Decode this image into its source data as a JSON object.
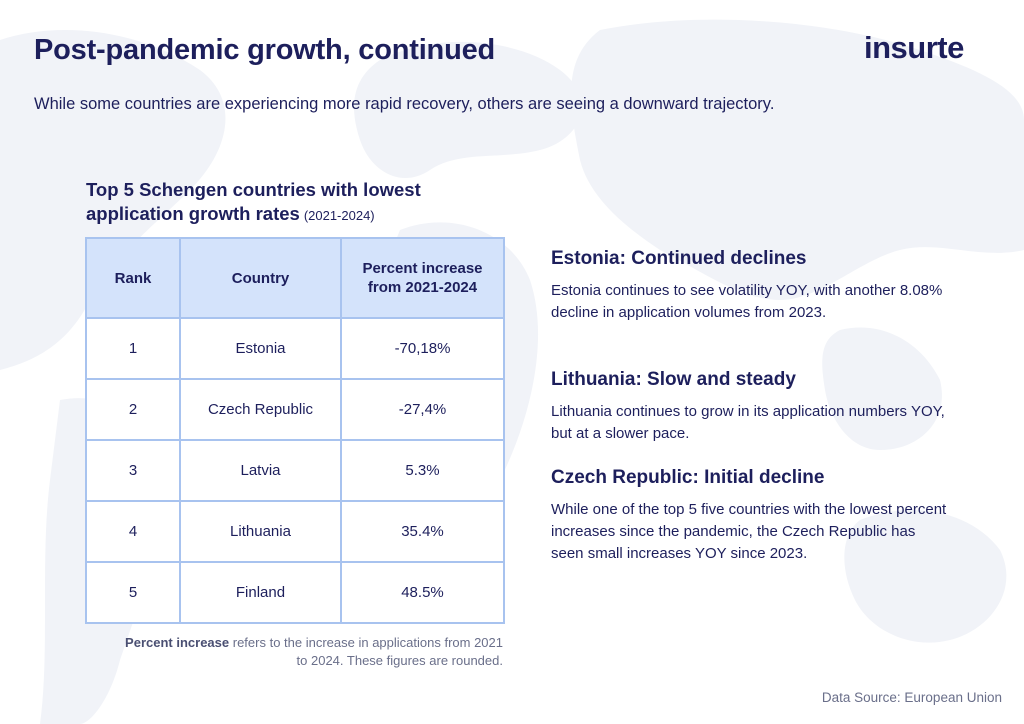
{
  "header": {
    "title": "Post-pandemic growth, continued",
    "brand": "insurte",
    "subtitle": "While some countries are experiencing more rapid recovery, others are seeing a downward trajectory."
  },
  "table": {
    "title": "Top 5 Schengen countries with lowest application growth rates",
    "period": "(2021-2024)",
    "columns": [
      "Rank",
      "Country",
      "Percent increase from 2021-2024"
    ],
    "rows": [
      {
        "rank": "1",
        "country": "Estonia",
        "change": "-70,18%"
      },
      {
        "rank": "2",
        "country": "Czech Republic",
        "change": "-27,4%"
      },
      {
        "rank": "3",
        "country": "Latvia",
        "change": "5.3%"
      },
      {
        "rank": "4",
        "country": "Lithuania",
        "change": "35.4%"
      },
      {
        "rank": "5",
        "country": "Finland",
        "change": "48.5%"
      }
    ],
    "footnote_term": "Percent increase",
    "footnote_text": " refers to the increase in applications from 2021 to 2024. These figures are rounded."
  },
  "insights": [
    {
      "heading": "Estonia: Continued declines",
      "body": "Estonia continues to see volatility YOY, with another 8.08% decline in application volumes from 2023."
    },
    {
      "heading": "Lithuania: Slow and steady",
      "body": "Lithuania continues to grow in its application numbers YOY, but at a slower pace."
    },
    {
      "heading": "Czech Republic: Initial decline",
      "body": "While one of the top 5 five countries with the lowest percent increases since the pandemic, the Czech Republic has seen small increases YOY since 2023."
    }
  ],
  "footer": {
    "source": "Data Source: European Union"
  },
  "colors": {
    "primary_text": "#1d1f5c",
    "table_header_bg": "#d4e3fb",
    "table_border": "#a8c3ef",
    "muted_text": "#6a6f8a",
    "map_fill": "#f1f3f8"
  }
}
